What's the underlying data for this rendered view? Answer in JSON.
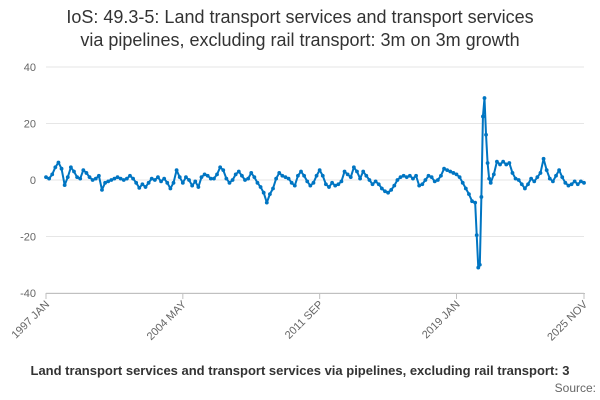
{
  "chart_data": {
    "type": "line",
    "title_lines": [
      "IoS: 49.3-5: Land transport services and transport services",
      "via pipelines, excluding rail transport: 3m on 3m growth"
    ],
    "ylim": [
      -40,
      40
    ],
    "y_ticks": [
      40,
      20,
      0,
      -20,
      -40
    ],
    "grid": true,
    "x_tick_labels": [
      "1997 JAN",
      "2004 MAY",
      "2011 SEP",
      "2019 JAN",
      "2025 NOV"
    ],
    "x_start": "1997-01",
    "x_end": "2025-11",
    "series": [
      {
        "name": "Land transport services and transport services via pipelines, excluding rail transport: 3m on 3m growth",
        "color": "#0075c2",
        "points": [
          [
            "1997-01",
            1.0
          ],
          [
            "1997-03",
            0.5
          ],
          [
            "1997-05",
            2.0
          ],
          [
            "1997-07",
            4.5
          ],
          [
            "1997-09",
            6.2
          ],
          [
            "1997-11",
            4.0
          ],
          [
            "1998-01",
            -1.8
          ],
          [
            "1998-03",
            1.0
          ],
          [
            "1998-05",
            4.5
          ],
          [
            "1998-07",
            3.0
          ],
          [
            "1998-09",
            1.0
          ],
          [
            "1998-11",
            0.5
          ],
          [
            "1999-01",
            3.5
          ],
          [
            "1999-03",
            2.5
          ],
          [
            "1999-05",
            1.0
          ],
          [
            "1999-07",
            0.0
          ],
          [
            "1999-09",
            0.5
          ],
          [
            "1999-11",
            1.5
          ],
          [
            "2000-01",
            -3.5
          ],
          [
            "2000-03",
            -1.0
          ],
          [
            "2000-05",
            -0.5
          ],
          [
            "2000-07",
            0.0
          ],
          [
            "2000-09",
            0.5
          ],
          [
            "2000-11",
            1.0
          ],
          [
            "2001-01",
            0.5
          ],
          [
            "2001-03",
            0.0
          ],
          [
            "2001-05",
            0.5
          ],
          [
            "2001-07",
            1.5
          ],
          [
            "2001-09",
            0.5
          ],
          [
            "2001-11",
            -1.0
          ],
          [
            "2002-01",
            -2.8
          ],
          [
            "2002-03",
            -1.5
          ],
          [
            "2002-05",
            -2.5
          ],
          [
            "2002-07",
            -1.0
          ],
          [
            "2002-09",
            0.5
          ],
          [
            "2002-11",
            0.0
          ],
          [
            "2003-01",
            1.0
          ],
          [
            "2003-03",
            -0.5
          ],
          [
            "2003-05",
            0.5
          ],
          [
            "2003-07",
            -1.0
          ],
          [
            "2003-09",
            -3.0
          ],
          [
            "2003-11",
            -1.0
          ],
          [
            "2004-01",
            3.5
          ],
          [
            "2004-03",
            1.0
          ],
          [
            "2004-05",
            -1.0
          ],
          [
            "2004-07",
            1.0
          ],
          [
            "2004-09",
            0.0
          ],
          [
            "2004-11",
            -2.0
          ],
          [
            "2005-01",
            -0.5
          ],
          [
            "2005-03",
            -2.5
          ],
          [
            "2005-05",
            1.0
          ],
          [
            "2005-07",
            2.0
          ],
          [
            "2005-09",
            1.5
          ],
          [
            "2005-11",
            0.5
          ],
          [
            "2006-01",
            0.5
          ],
          [
            "2006-03",
            2.0
          ],
          [
            "2006-05",
            4.5
          ],
          [
            "2006-07",
            3.5
          ],
          [
            "2006-09",
            0.5
          ],
          [
            "2006-11",
            -1.0
          ],
          [
            "2007-01",
            0.0
          ],
          [
            "2007-03",
            2.0
          ],
          [
            "2007-05",
            3.0
          ],
          [
            "2007-07",
            1.5
          ],
          [
            "2007-09",
            0.0
          ],
          [
            "2007-11",
            0.5
          ],
          [
            "2008-01",
            2.5
          ],
          [
            "2008-03",
            1.0
          ],
          [
            "2008-05",
            -1.0
          ],
          [
            "2008-07",
            -2.5
          ],
          [
            "2008-09",
            -4.5
          ],
          [
            "2008-11",
            -8.0
          ],
          [
            "2009-01",
            -5.0
          ],
          [
            "2009-03",
            -3.0
          ],
          [
            "2009-05",
            0.5
          ],
          [
            "2009-07",
            2.5
          ],
          [
            "2009-09",
            1.5
          ],
          [
            "2009-11",
            1.0
          ],
          [
            "2010-01",
            0.5
          ],
          [
            "2010-03",
            -1.0
          ],
          [
            "2010-05",
            -2.0
          ],
          [
            "2010-07",
            1.5
          ],
          [
            "2010-09",
            3.0
          ],
          [
            "2010-11",
            1.5
          ],
          [
            "2011-01",
            -0.5
          ],
          [
            "2011-03",
            -2.0
          ],
          [
            "2011-05",
            -1.0
          ],
          [
            "2011-07",
            1.5
          ],
          [
            "2011-09",
            3.5
          ],
          [
            "2011-11",
            1.5
          ],
          [
            "2012-01",
            -1.5
          ],
          [
            "2012-03",
            -2.5
          ],
          [
            "2012-05",
            -1.0
          ],
          [
            "2012-07",
            -2.0
          ],
          [
            "2012-09",
            -1.5
          ],
          [
            "2012-11",
            -0.5
          ],
          [
            "2013-01",
            3.0
          ],
          [
            "2013-03",
            2.0
          ],
          [
            "2013-05",
            1.0
          ],
          [
            "2013-07",
            4.5
          ],
          [
            "2013-09",
            3.0
          ],
          [
            "2013-11",
            0.5
          ],
          [
            "2014-01",
            3.0
          ],
          [
            "2014-03",
            1.5
          ],
          [
            "2014-05",
            0.0
          ],
          [
            "2014-07",
            -1.5
          ],
          [
            "2014-09",
            -0.5
          ],
          [
            "2014-11",
            -1.5
          ],
          [
            "2015-01",
            -3.0
          ],
          [
            "2015-03",
            -4.0
          ],
          [
            "2015-05",
            -4.5
          ],
          [
            "2015-07",
            -3.5
          ],
          [
            "2015-09",
            -2.0
          ],
          [
            "2015-11",
            0.0
          ],
          [
            "2016-01",
            1.0
          ],
          [
            "2016-03",
            1.5
          ],
          [
            "2016-05",
            1.0
          ],
          [
            "2016-07",
            1.5
          ],
          [
            "2016-09",
            0.5
          ],
          [
            "2016-11",
            1.5
          ],
          [
            "2017-01",
            -2.0
          ],
          [
            "2017-03",
            -1.5
          ],
          [
            "2017-05",
            0.0
          ],
          [
            "2017-07",
            1.5
          ],
          [
            "2017-09",
            1.0
          ],
          [
            "2017-11",
            -0.5
          ],
          [
            "2018-01",
            0.0
          ],
          [
            "2018-03",
            1.5
          ],
          [
            "2018-05",
            4.0
          ],
          [
            "2018-07",
            3.5
          ],
          [
            "2018-09",
            3.0
          ],
          [
            "2018-11",
            2.5
          ],
          [
            "2019-01",
            2.0
          ],
          [
            "2019-03",
            1.0
          ],
          [
            "2019-05",
            -1.0
          ],
          [
            "2019-07",
            -3.0
          ],
          [
            "2019-09",
            -5.0
          ],
          [
            "2019-11",
            -7.5
          ],
          [
            "2020-01",
            -8.0
          ],
          [
            "2020-02",
            -19.5
          ],
          [
            "2020-03",
            -31.0
          ],
          [
            "2020-04",
            -30.0
          ],
          [
            "2020-05",
            -6.0
          ],
          [
            "2020-06",
            22.5
          ],
          [
            "2020-07",
            29.0
          ],
          [
            "2020-08",
            16.0
          ],
          [
            "2020-09",
            6.0
          ],
          [
            "2020-10",
            0.5
          ],
          [
            "2020-11",
            -1.0
          ],
          [
            "2021-01",
            2.0
          ],
          [
            "2021-03",
            6.5
          ],
          [
            "2021-05",
            5.5
          ],
          [
            "2021-07",
            6.5
          ],
          [
            "2021-09",
            5.5
          ],
          [
            "2021-11",
            6.0
          ],
          [
            "2022-01",
            2.5
          ],
          [
            "2022-03",
            0.5
          ],
          [
            "2022-05",
            0.0
          ],
          [
            "2022-07",
            -1.5
          ],
          [
            "2022-09",
            -3.0
          ],
          [
            "2022-11",
            -1.5
          ],
          [
            "2023-01",
            0.5
          ],
          [
            "2023-03",
            -0.5
          ],
          [
            "2023-05",
            1.0
          ],
          [
            "2023-07",
            2.5
          ],
          [
            "2023-09",
            7.5
          ],
          [
            "2023-11",
            3.5
          ],
          [
            "2024-01",
            0.5
          ],
          [
            "2024-03",
            -0.5
          ],
          [
            "2024-05",
            1.5
          ],
          [
            "2024-07",
            3.5
          ],
          [
            "2024-09",
            1.0
          ],
          [
            "2024-11",
            -1.0
          ],
          [
            "2025-01",
            -2.0
          ],
          [
            "2025-03",
            -1.5
          ],
          [
            "2025-05",
            -0.5
          ],
          [
            "2025-07",
            -1.5
          ],
          [
            "2025-09",
            -0.5
          ],
          [
            "2025-11",
            -1.0
          ]
        ]
      }
    ],
    "footer_series_label": "Land transport services and transport services via pipelines, excluding rail transport: 3",
    "source_label": "Source:"
  }
}
